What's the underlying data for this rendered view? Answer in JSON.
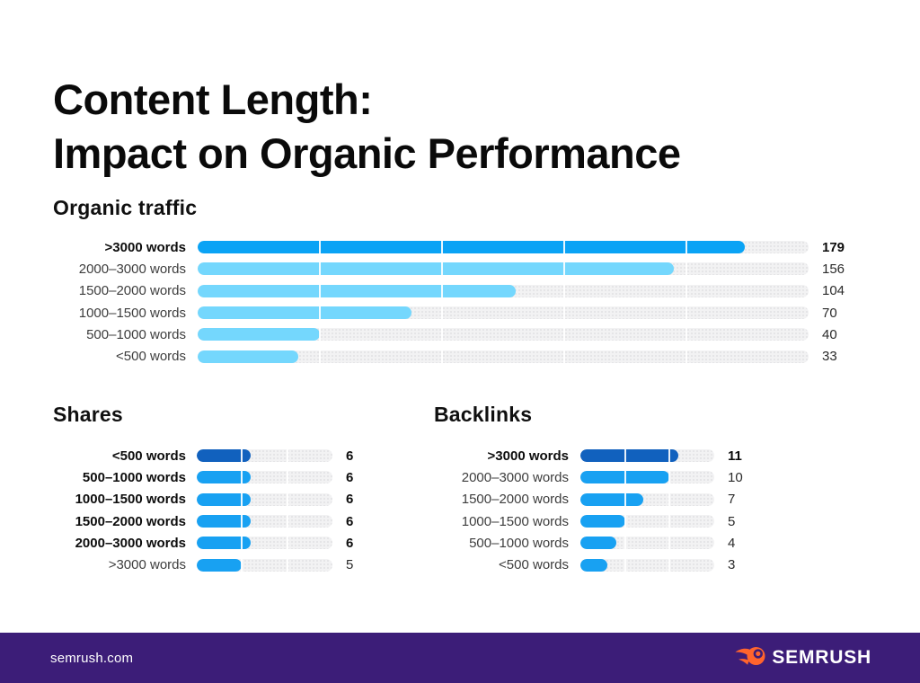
{
  "page": {
    "title_line1": "Content Length:",
    "title_line2": "Impact on Organic Performance"
  },
  "colors": {
    "track": "#F2F2F3",
    "segment_divider": "#FFFFFF",
    "organic_highlight_blue": "#0AA3F5",
    "organic_light_blue": "#74D7FD",
    "small_chart_dark_blue": "#1161BE",
    "small_chart_bright_blue": "#18A1F2",
    "footer_purple": "#3C1D78",
    "brand_orange": "#FF642D"
  },
  "chart_data": [
    {
      "id": "organic-traffic",
      "type": "bar",
      "orientation": "horizontal",
      "title": "Organic traffic",
      "categories": [
        ">3000 words",
        "2000–3000 words",
        "1500–2000 words",
        "1000–1500 words",
        "500–1000 words",
        "<500 words"
      ],
      "values": [
        179,
        156,
        104,
        70,
        40,
        33
      ],
      "xlim": [
        0,
        200
      ],
      "segment_dividers": [
        40,
        80,
        120,
        160
      ],
      "emphasis": [
        true,
        false,
        false,
        false,
        false,
        false
      ],
      "bar_colors": [
        "#0AA3F5",
        "#74D7FD",
        "#74D7FD",
        "#74D7FD",
        "#74D7FD",
        "#74D7FD"
      ],
      "grid": false,
      "legend": false
    },
    {
      "id": "shares",
      "type": "bar",
      "orientation": "horizontal",
      "title": "Shares",
      "categories": [
        "<500 words",
        "500–1000 words",
        "1000–1500 words",
        "1500–2000 words",
        "2000–3000 words",
        ">3000 words"
      ],
      "values": [
        6,
        6,
        6,
        6,
        6,
        5
      ],
      "xlim": [
        0,
        15
      ],
      "segment_dividers": [
        5,
        10
      ],
      "emphasis": [
        true,
        true,
        true,
        true,
        true,
        false
      ],
      "bar_colors": [
        "#1161BE",
        "#18A1F2",
        "#18A1F2",
        "#18A1F2",
        "#18A1F2",
        "#18A1F2"
      ],
      "grid": false,
      "legend": false
    },
    {
      "id": "backlinks",
      "type": "bar",
      "orientation": "horizontal",
      "title": "Backlinks",
      "categories": [
        ">3000 words",
        "2000–3000 words",
        "1500–2000 words",
        "1000–1500 words",
        "500–1000 words",
        "<500 words"
      ],
      "values": [
        11,
        10,
        7,
        5,
        4,
        3
      ],
      "xlim": [
        0,
        15
      ],
      "segment_dividers": [
        5,
        10
      ],
      "emphasis": [
        true,
        false,
        false,
        false,
        false,
        false
      ],
      "bar_colors": [
        "#1161BE",
        "#18A1F2",
        "#18A1F2",
        "#18A1F2",
        "#18A1F2",
        "#18A1F2"
      ],
      "grid": false,
      "legend": false
    }
  ],
  "footer": {
    "website": "semrush.com",
    "brand_name": "SEMRUSH",
    "logo_icon": "semrush-flame-icon"
  }
}
